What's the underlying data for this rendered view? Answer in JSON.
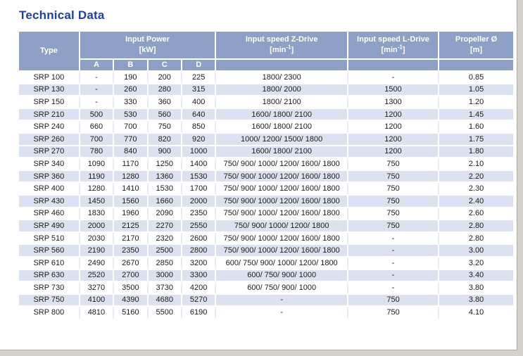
{
  "page": {
    "title": "Technical Data"
  },
  "colors": {
    "title_blue": "#21409a",
    "header_background": "#8ea0c5",
    "header_text": "#ffffff",
    "shaded_row_background": "#dce2ef",
    "body_text": "#1b1b1b",
    "window_edge_gray": "#d4d1ca"
  },
  "table": {
    "header": {
      "type": "Type",
      "input_power": "Input Power",
      "input_power_unit": "[kW]",
      "sub_columns": [
        "A",
        "B",
        "C",
        "D"
      ],
      "z_drive": "Input speed Z-Drive",
      "l_drive": "Input speed L-Drive",
      "unit_min_open": "[min",
      "unit_min_sup": "-1",
      "unit_min_close": "]",
      "propeller": "Propeller Ø",
      "propeller_unit": "[m]"
    },
    "columns_order": [
      "type",
      "a",
      "b",
      "c",
      "d",
      "z_speed",
      "l_speed",
      "propeller"
    ],
    "rows": [
      {
        "type": "SRP 100",
        "a": "-",
        "b": "190",
        "c": "200",
        "d": "225",
        "z_speed": "1800/ 2300",
        "l_speed": "-",
        "propeller": "0.85",
        "shaded": false
      },
      {
        "type": "SRP 130",
        "a": "-",
        "b": "260",
        "c": "280",
        "d": "315",
        "z_speed": "1800/ 2000",
        "l_speed": "1500",
        "propeller": "1.05",
        "shaded": true
      },
      {
        "type": "SRP 150",
        "a": "-",
        "b": "330",
        "c": "360",
        "d": "400",
        "z_speed": "1800/ 2100",
        "l_speed": "1300",
        "propeller": "1.20",
        "shaded": false
      },
      {
        "type": "SRP 210",
        "a": "500",
        "b": "530",
        "c": "560",
        "d": "640",
        "z_speed": "1600/ 1800/ 2100",
        "l_speed": "1200",
        "propeller": "1.45",
        "shaded": true
      },
      {
        "type": "SRP 240",
        "a": "660",
        "b": "700",
        "c": "750",
        "d": "850",
        "z_speed": "1600/ 1800/ 2100",
        "l_speed": "1200",
        "propeller": "1.60",
        "shaded": false
      },
      {
        "type": "SRP 260",
        "a": "700",
        "b": "770",
        "c": "820",
        "d": "920",
        "z_speed": "1000/ 1200/ 1500/ 1800",
        "l_speed": "1200",
        "propeller": "1.75",
        "shaded": true
      },
      {
        "type": "SRP 270",
        "a": "780",
        "b": "840",
        "c": "900",
        "d": "1000",
        "z_speed": "1600/ 1800/ 2100",
        "l_speed": "1200",
        "propeller": "1.80",
        "shaded": true
      },
      {
        "type": "SRP 340",
        "a": "1090",
        "b": "1170",
        "c": "1250",
        "d": "1400",
        "z_speed": "750/ 900/ 1000/ 1200/ 1600/ 1800",
        "l_speed": "750",
        "propeller": "2.10",
        "shaded": false
      },
      {
        "type": "SRP 360",
        "a": "1190",
        "b": "1280",
        "c": "1360",
        "d": "1530",
        "z_speed": "750/ 900/ 1000/ 1200/ 1600/ 1800",
        "l_speed": "750",
        "propeller": "2.20",
        "shaded": true
      },
      {
        "type": "SRP 400",
        "a": "1280",
        "b": "1410",
        "c": "1530",
        "d": "1700",
        "z_speed": "750/ 900/ 1000/ 1200/ 1600/ 1800",
        "l_speed": "750",
        "propeller": "2.30",
        "shaded": false
      },
      {
        "type": "SRP 430",
        "a": "1450",
        "b": "1560",
        "c": "1660",
        "d": "2000",
        "z_speed": "750/ 900/ 1000/ 1200/ 1600/ 1800",
        "l_speed": "750",
        "propeller": "2.40",
        "shaded": true
      },
      {
        "type": "SRP 460",
        "a": "1830",
        "b": "1960",
        "c": "2090",
        "d": "2350",
        "z_speed": "750/ 900/ 1000/ 1200/ 1600/ 1800",
        "l_speed": "750",
        "propeller": "2.60",
        "shaded": false
      },
      {
        "type": "SRP 490",
        "a": "2000",
        "b": "2125",
        "c": "2270",
        "d": "2550",
        "z_speed": "750/ 900/ 1000/ 1200/ 1800",
        "l_speed": "750",
        "propeller": "2.80",
        "shaded": true
      },
      {
        "type": "SRP 510",
        "a": "2030",
        "b": "2170",
        "c": "2320",
        "d": "2600",
        "z_speed": "750/ 900/ 1000/ 1200/ 1600/ 1800",
        "l_speed": "-",
        "propeller": "2.80",
        "shaded": false
      },
      {
        "type": "SRP 560",
        "a": "2190",
        "b": "2350",
        "c": "2500",
        "d": "2800",
        "z_speed": "750/ 900/ 1000/ 1200/ 1600/ 1800",
        "l_speed": "-",
        "propeller": "3.00",
        "shaded": true
      },
      {
        "type": "SRP 610",
        "a": "2490",
        "b": "2670",
        "c": "2850",
        "d": "3200",
        "z_speed": "600/ 750/ 900/ 1000/ 1200/ 1800",
        "l_speed": "-",
        "propeller": "3.20",
        "shaded": false
      },
      {
        "type": "SRP 630",
        "a": "2520",
        "b": "2700",
        "c": "3000",
        "d": "3300",
        "z_speed": "600/ 750/ 900/ 1000",
        "l_speed": "-",
        "propeller": "3.40",
        "shaded": true
      },
      {
        "type": "SRP 730",
        "a": "3270",
        "b": "3500",
        "c": "3730",
        "d": "4200",
        "z_speed": "600/ 750/ 900/ 1000",
        "l_speed": "-",
        "propeller": "3.80",
        "shaded": false
      },
      {
        "type": "SRP 750",
        "a": "4100",
        "b": "4390",
        "c": "4680",
        "d": "5270",
        "z_speed": "-",
        "l_speed": "750",
        "propeller": "3.80",
        "shaded": true
      },
      {
        "type": "SRP 800",
        "a": "4810",
        "b": "5160",
        "c": "5500",
        "d": "6190",
        "z_speed": "-",
        "l_speed": "750",
        "propeller": "4.10",
        "shaded": false
      }
    ]
  }
}
